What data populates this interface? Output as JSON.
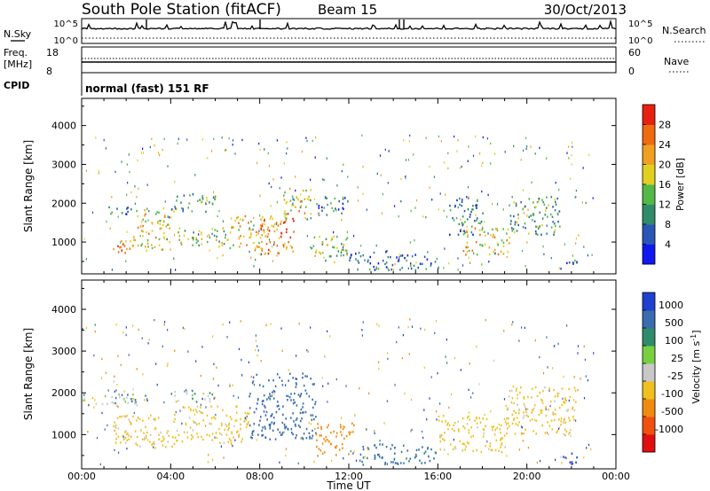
{
  "header": {
    "station": "South Pole Station (fitACF)",
    "beam": "Beam 15",
    "date": "30/Oct/2013"
  },
  "strip_panels": {
    "nsky": {
      "left_label": "N.Sky",
      "left_ticks": [
        "10^5",
        "10^0"
      ],
      "right_label": "N.Search",
      "right_ticks": [
        "10^5",
        "10^0"
      ]
    },
    "freq": {
      "left_label_line1": "Freq.",
      "left_label_line2": "[MHz]",
      "left_ticks": [
        "18",
        "8"
      ],
      "right_label": "Nave",
      "right_ticks": [
        "60",
        "0"
      ]
    },
    "cpid": {
      "label": "CPID",
      "text": "normal (fast) 151 RF"
    }
  },
  "chart_data": [
    {
      "type": "heatmap",
      "title": "",
      "quantity": "Power",
      "xlabel": "Time UT",
      "ylabel": "Slant Range [km]",
      "xlim_hours": [
        0,
        24
      ],
      "ylim": [
        180,
        4700
      ],
      "y_ticks": [
        1000,
        2000,
        3000,
        4000
      ],
      "x_tick_labels": [
        "00:00",
        "04:00",
        "08:00",
        "12:00",
        "16:00",
        "20:00",
        "00:00"
      ],
      "colorbar": {
        "label": "Power [dB]",
        "tick_labels": [
          "4",
          "8",
          "12",
          "16",
          "20",
          "24",
          "28"
        ],
        "colors": [
          "#1018f0",
          "#2a56b8",
          "#2f8c6a",
          "#52b848",
          "#e2d020",
          "#f0a020",
          "#f06a10",
          "#e82010"
        ]
      },
      "scatter_regions": [
        {
          "t0": 1.0,
          "t1": 2.2,
          "r0": 1700,
          "r1": 1950,
          "value": 8
        },
        {
          "t0": 1.4,
          "t1": 2.3,
          "r0": 700,
          "r1": 1200,
          "value": 24
        },
        {
          "t0": 2.3,
          "t1": 4.0,
          "r0": 800,
          "r1": 1900,
          "value": 18
        },
        {
          "t0": 4.0,
          "t1": 6.0,
          "r0": 1800,
          "r1": 2300,
          "value": 12
        },
        {
          "t0": 4.3,
          "t1": 6.5,
          "r0": 900,
          "r1": 1400,
          "value": 16
        },
        {
          "t0": 6.5,
          "t1": 8.2,
          "r0": 800,
          "r1": 1700,
          "value": 20
        },
        {
          "t0": 8.0,
          "t1": 9.6,
          "r0": 700,
          "r1": 1800,
          "value": 24
        },
        {
          "t0": 9.0,
          "t1": 10.3,
          "r0": 1600,
          "r1": 2400,
          "value": 18
        },
        {
          "t0": 10.3,
          "t1": 12.0,
          "r0": 500,
          "r1": 1200,
          "value": 16
        },
        {
          "t0": 10.5,
          "t1": 12.0,
          "r0": 1700,
          "r1": 2200,
          "value": 8
        },
        {
          "t0": 12.0,
          "t1": 14.0,
          "r0": 300,
          "r1": 800,
          "value": 8
        },
        {
          "t0": 14.0,
          "t1": 16.0,
          "r0": 300,
          "r1": 700,
          "value": 6
        },
        {
          "t0": 16.5,
          "t1": 18.0,
          "r0": 1200,
          "r1": 2200,
          "value": 8
        },
        {
          "t0": 17.0,
          "t1": 19.2,
          "r0": 700,
          "r1": 1400,
          "value": 20
        },
        {
          "t0": 19.2,
          "t1": 21.5,
          "r0": 1200,
          "r1": 2200,
          "value": 12
        },
        {
          "t0": 21.5,
          "t1": 22.3,
          "r0": 300,
          "r1": 600,
          "value": 6
        }
      ]
    },
    {
      "type": "heatmap",
      "title": "",
      "quantity": "Velocity",
      "xlabel": "Time UT",
      "ylabel": "Slant Range [km]",
      "xlim_hours": [
        0,
        24
      ],
      "ylim": [
        180,
        4700
      ],
      "y_ticks": [
        1000,
        2000,
        3000,
        4000
      ],
      "x_tick_labels": [
        "00:00",
        "04:00",
        "08:00",
        "12:00",
        "16:00",
        "20:00",
        "00:00"
      ],
      "colorbar": {
        "label": "Velocity [m s^-1]",
        "tick_labels": [
          "1000",
          "500",
          "100",
          "25",
          "-25",
          "-100",
          "-500",
          "-1000"
        ],
        "colors": [
          "#2040d0",
          "#3a6cb0",
          "#2f8c6a",
          "#78d040",
          "#c8c8c8",
          "#f0c020",
          "#f08a10",
          "#f05010",
          "#e01010"
        ]
      },
      "scatter_regions": [
        {
          "t0": 0.0,
          "t1": 3.0,
          "r0": 1700,
          "r1": 2000,
          "value": 0
        },
        {
          "t0": 1.4,
          "t1": 4.5,
          "r0": 700,
          "r1": 1500,
          "value": -200
        },
        {
          "t0": 4.0,
          "t1": 6.0,
          "r0": 1800,
          "r1": 2100,
          "value": 0
        },
        {
          "t0": 4.5,
          "t1": 7.5,
          "r0": 800,
          "r1": 1700,
          "value": -200
        },
        {
          "t0": 7.5,
          "t1": 10.5,
          "r0": 900,
          "r1": 2500,
          "value": 300
        },
        {
          "t0": 10.5,
          "t1": 12.2,
          "r0": 500,
          "r1": 1300,
          "value": -700
        },
        {
          "t0": 12.5,
          "t1": 16.0,
          "r0": 300,
          "r1": 800,
          "value": 150
        },
        {
          "t0": 16.0,
          "t1": 19.0,
          "r0": 600,
          "r1": 1500,
          "value": -200
        },
        {
          "t0": 19.0,
          "t1": 22.2,
          "r0": 1000,
          "r1": 2200,
          "value": -200
        },
        {
          "t0": 21.5,
          "t1": 22.3,
          "r0": 300,
          "r1": 600,
          "value": 700
        }
      ]
    }
  ],
  "x_axis_title": "Time UT"
}
